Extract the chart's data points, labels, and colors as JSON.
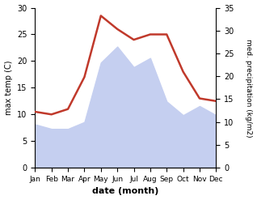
{
  "months": [
    "Jan",
    "Feb",
    "Mar",
    "Apr",
    "May",
    "Jun",
    "Jul",
    "Aug",
    "Sep",
    "Oct",
    "Nov",
    "Dec"
  ],
  "x": [
    1,
    2,
    3,
    4,
    5,
    6,
    7,
    8,
    9,
    10,
    11,
    12
  ],
  "temperature": [
    10.5,
    10.0,
    11.0,
    17.0,
    28.5,
    26.0,
    24.0,
    25.0,
    25.0,
    18.0,
    13.0,
    12.5
  ],
  "precipitation": [
    9.5,
    8.5,
    8.5,
    10.0,
    23.0,
    26.5,
    22.0,
    24.0,
    14.5,
    11.5,
    13.5,
    11.5
  ],
  "temp_color": "#c0392b",
  "precip_color": "#c5cff0",
  "ylabel_left": "max temp (C)",
  "ylabel_right": "med. precipitation (kg/m2)",
  "xlabel": "date (month)",
  "ylim_left": [
    0,
    30
  ],
  "ylim_right": [
    0,
    35
  ],
  "yticks_left": [
    0,
    5,
    10,
    15,
    20,
    25,
    30
  ],
  "yticks_right": [
    0,
    5,
    10,
    15,
    20,
    25,
    30,
    35
  ],
  "background_color": "#ffffff",
  "temp_linewidth": 1.8,
  "grid_color": "#dddddd"
}
